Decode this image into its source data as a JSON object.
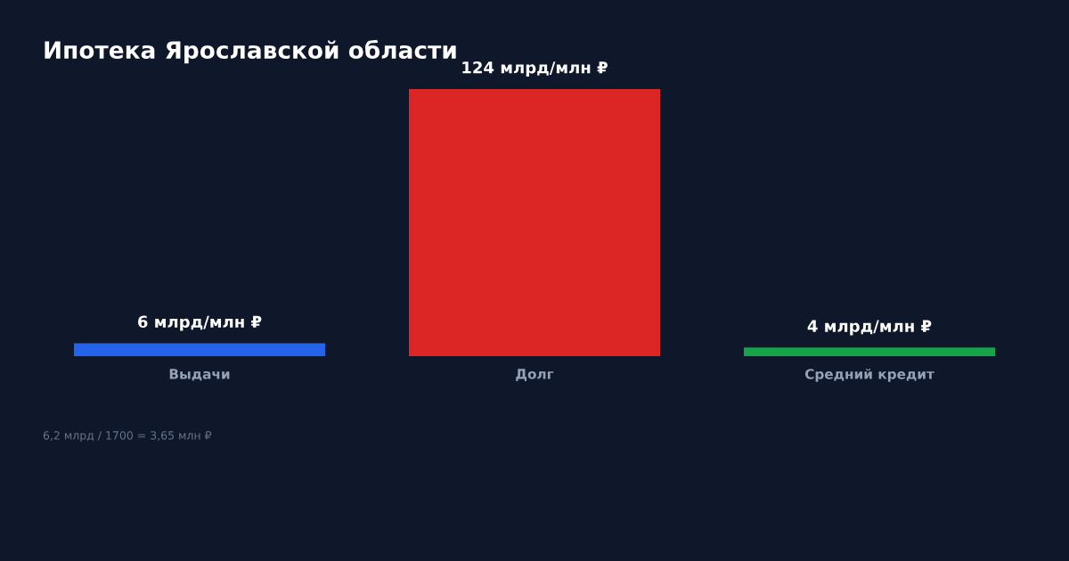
{
  "chart_data": {
    "type": "bar",
    "title": "Ипотека Ярославской области",
    "categories": [
      "Выдачи",
      "Долг",
      "Средний кредит"
    ],
    "values": [
      6,
      124,
      4
    ],
    "colors": [
      "#2563eb",
      "#dc2626",
      "#16a34a"
    ],
    "value_labels": [
      "6 млрд/млн ₽",
      "124 млрд/млн ₽",
      "4 млрд/млн ₽"
    ],
    "tick_labels": "x",
    "grid": false,
    "legend": false,
    "annotations": [
      "6,2 млрд / 1700 = 3,65 млн ₽"
    ]
  }
}
